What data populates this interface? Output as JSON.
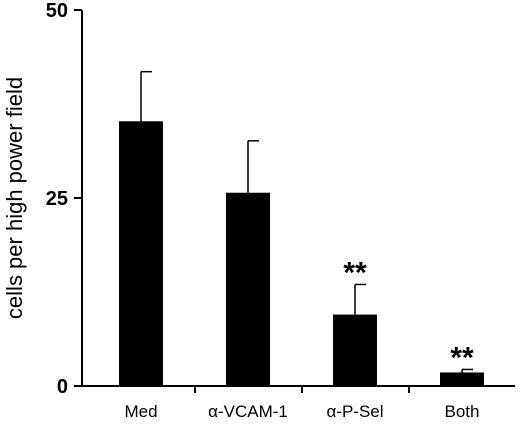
{
  "chart_data": {
    "type": "bar",
    "title": "",
    "xlabel": "",
    "ylabel": "cells per high power field",
    "ylim": [
      0,
      50
    ],
    "yticks": [
      0,
      25,
      50
    ],
    "categories": [
      "Med",
      "α-VCAM-1",
      "α-P-Sel",
      "Both"
    ],
    "values": [
      35.2,
      25.7,
      9.5,
      1.8
    ],
    "errors": [
      6.6,
      6.9,
      4.0,
      0.4
    ],
    "annotations": [
      "",
      "",
      "**",
      "**"
    ],
    "bar_color": "#000000",
    "grid": false,
    "legend": "none"
  }
}
